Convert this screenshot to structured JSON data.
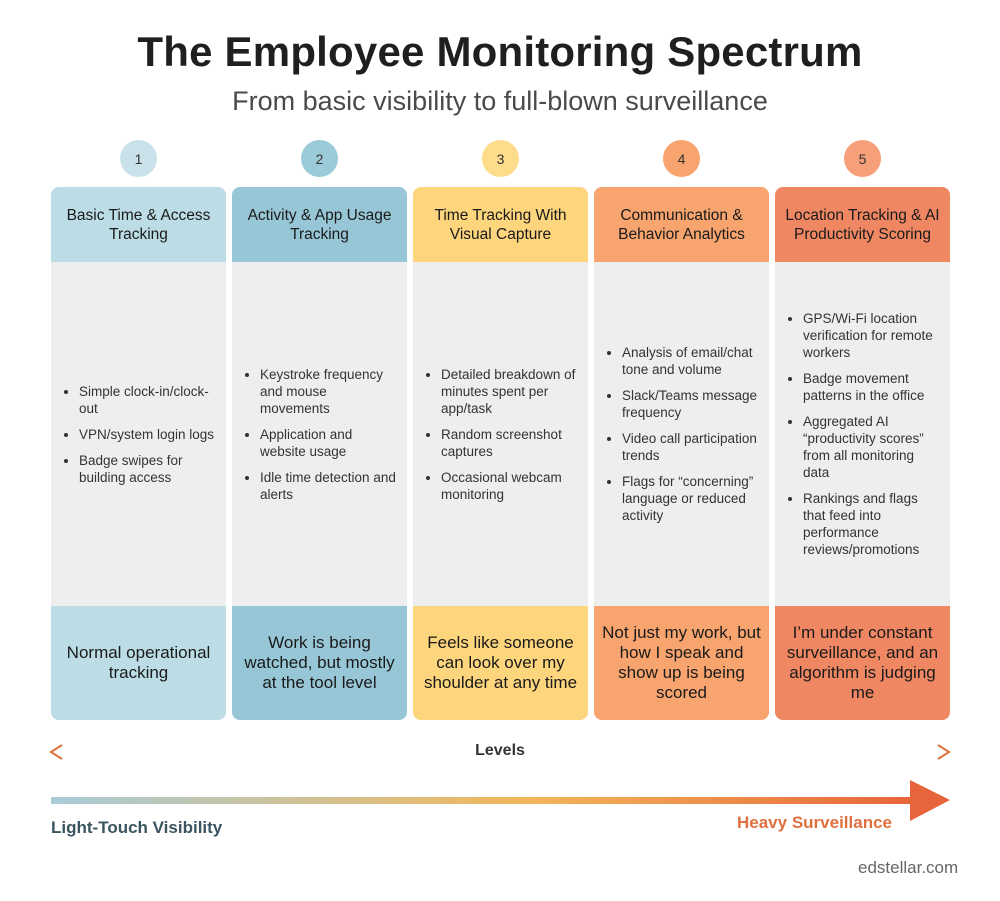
{
  "title": "The Employee Monitoring Spectrum",
  "subtitle": "From basic visibility to full-blown surveillance",
  "levels": [
    {
      "number": "1",
      "heading": "Basic Time & Access Tracking",
      "items": [
        "Simple clock-in/clock-out",
        "VPN/system login logs",
        "Badge swipes for building access"
      ],
      "feeling": "Normal operational tracking",
      "colors": {
        "circle": "#c9e2ea",
        "head": "#bcdde6",
        "foot": "#bcdde6"
      }
    },
    {
      "number": "2",
      "heading": "Activity & App Usage Tracking",
      "items": [
        "Keystroke frequency and mouse movements",
        "Application and website usage",
        "Idle time detection and alerts"
      ],
      "feeling": "Work is being watched, but mostly at the tool level",
      "colors": {
        "circle": "#9bcbd8",
        "head": "#97c7d6",
        "foot": "#97c7d6"
      }
    },
    {
      "number": "3",
      "heading": "Time Tracking With Visual Capture",
      "items": [
        "Detailed breakdown of minutes spent per app/task",
        "Random screenshot captures",
        "Occasional webcam monitoring"
      ],
      "feeling": "Feels like someone can look over my shoulder at any time",
      "colors": {
        "circle": "#fddc8a",
        "head": "#fdd57c",
        "foot": "#fdd57c"
      }
    },
    {
      "number": "4",
      "heading": "Communication & Behavior Analytics",
      "items": [
        "Analysis of email/chat tone and volume",
        "Slack/Teams message frequency",
        "Video call participation trends",
        "Flags for “concerning” language or reduced activity"
      ],
      "feeling": "Not just my work, but how I speak and show up is being scored",
      "colors": {
        "circle": "#f7a46e",
        "head": "#f7a46e",
        "foot": "#f7a46e"
      }
    },
    {
      "number": "5",
      "heading": "Location Tracking & AI Productivity Scoring",
      "items": [
        "GPS/Wi-Fi location verification for remote workers",
        "Badge movement patterns in the office",
        "Aggregated AI “productivity scores” from all monitoring data",
        "Rankings and flags that feed into performance reviews/promotions"
      ],
      "feeling": "I’m under constant surveillance, and an algorithm is judging me",
      "colors": {
        "circle": "#f5a07a",
        "head": "#f08763",
        "foot": "#f08763"
      }
    }
  ],
  "levels_label": "Levels",
  "scale_left": "Light-Touch Visibility",
  "scale_right": "Heavy Surveillance",
  "credit": "edstellar.com",
  "colors": {
    "arrow_start": "#a8ccd8",
    "arrow_mid": "#f2b75a",
    "arrow_end": "#e8643a",
    "levels_arrow": "#e0703f"
  }
}
